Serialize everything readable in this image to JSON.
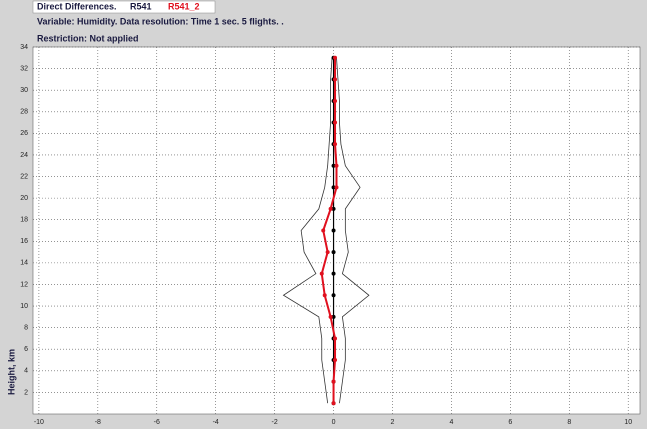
{
  "chart_data": {
    "type": "line",
    "title": "Direct Differences.",
    "subtitle": "Variable: Humidity. Data resolution: Time 1 sec. 5 flights. .",
    "note": "Restriction: Not applied",
    "y_label": "Height, km",
    "y": [
      1,
      3,
      5,
      7,
      9,
      11,
      13,
      15,
      17,
      19,
      21,
      23,
      25,
      27,
      29,
      31,
      33
    ],
    "series": [
      {
        "name": "R541",
        "color": "#000000",
        "markers": true,
        "values": [
          0,
          0,
          0,
          0,
          0,
          0,
          0,
          0,
          0,
          0,
          0,
          0,
          0,
          0,
          0,
          0,
          0
        ]
      },
      {
        "name": "R541_2",
        "color": "#e0101e",
        "markers": true,
        "values": [
          0,
          0,
          0.05,
          0.05,
          -0.1,
          -0.3,
          -0.4,
          -0.2,
          -0.35,
          -0.1,
          0.1,
          0.1,
          0.05,
          0.05,
          0.05,
          0.05,
          0.05
        ]
      },
      {
        "color": "#333333",
        "markers": false,
        "values": [
          -0.2,
          -0.3,
          -0.4,
          -0.4,
          -0.5,
          -1.7,
          -0.6,
          -1.0,
          -1.1,
          -0.5,
          -0.3,
          -0.2,
          -0.15,
          -0.1,
          -0.1,
          -0.1,
          -0.05
        ]
      },
      {
        "color": "#333333",
        "markers": false,
        "values": [
          0.2,
          0.3,
          0.4,
          0.4,
          0.3,
          1.2,
          0.3,
          0.5,
          0.4,
          0.4,
          0.9,
          0.4,
          0.25,
          0.2,
          0.2,
          0.15,
          0.1
        ]
      }
    ],
    "xlim": [
      -10.2,
      10.4
    ],
    "xticks": [
      -10,
      -8,
      -6,
      -4,
      -2,
      0,
      2,
      4,
      6,
      8,
      10
    ],
    "ylim": [
      0,
      34
    ],
    "yticks": [
      2,
      4,
      6,
      8,
      10,
      12,
      14,
      16,
      18,
      20,
      22,
      24,
      26,
      28,
      30,
      32,
      34
    ],
    "grid": true
  }
}
